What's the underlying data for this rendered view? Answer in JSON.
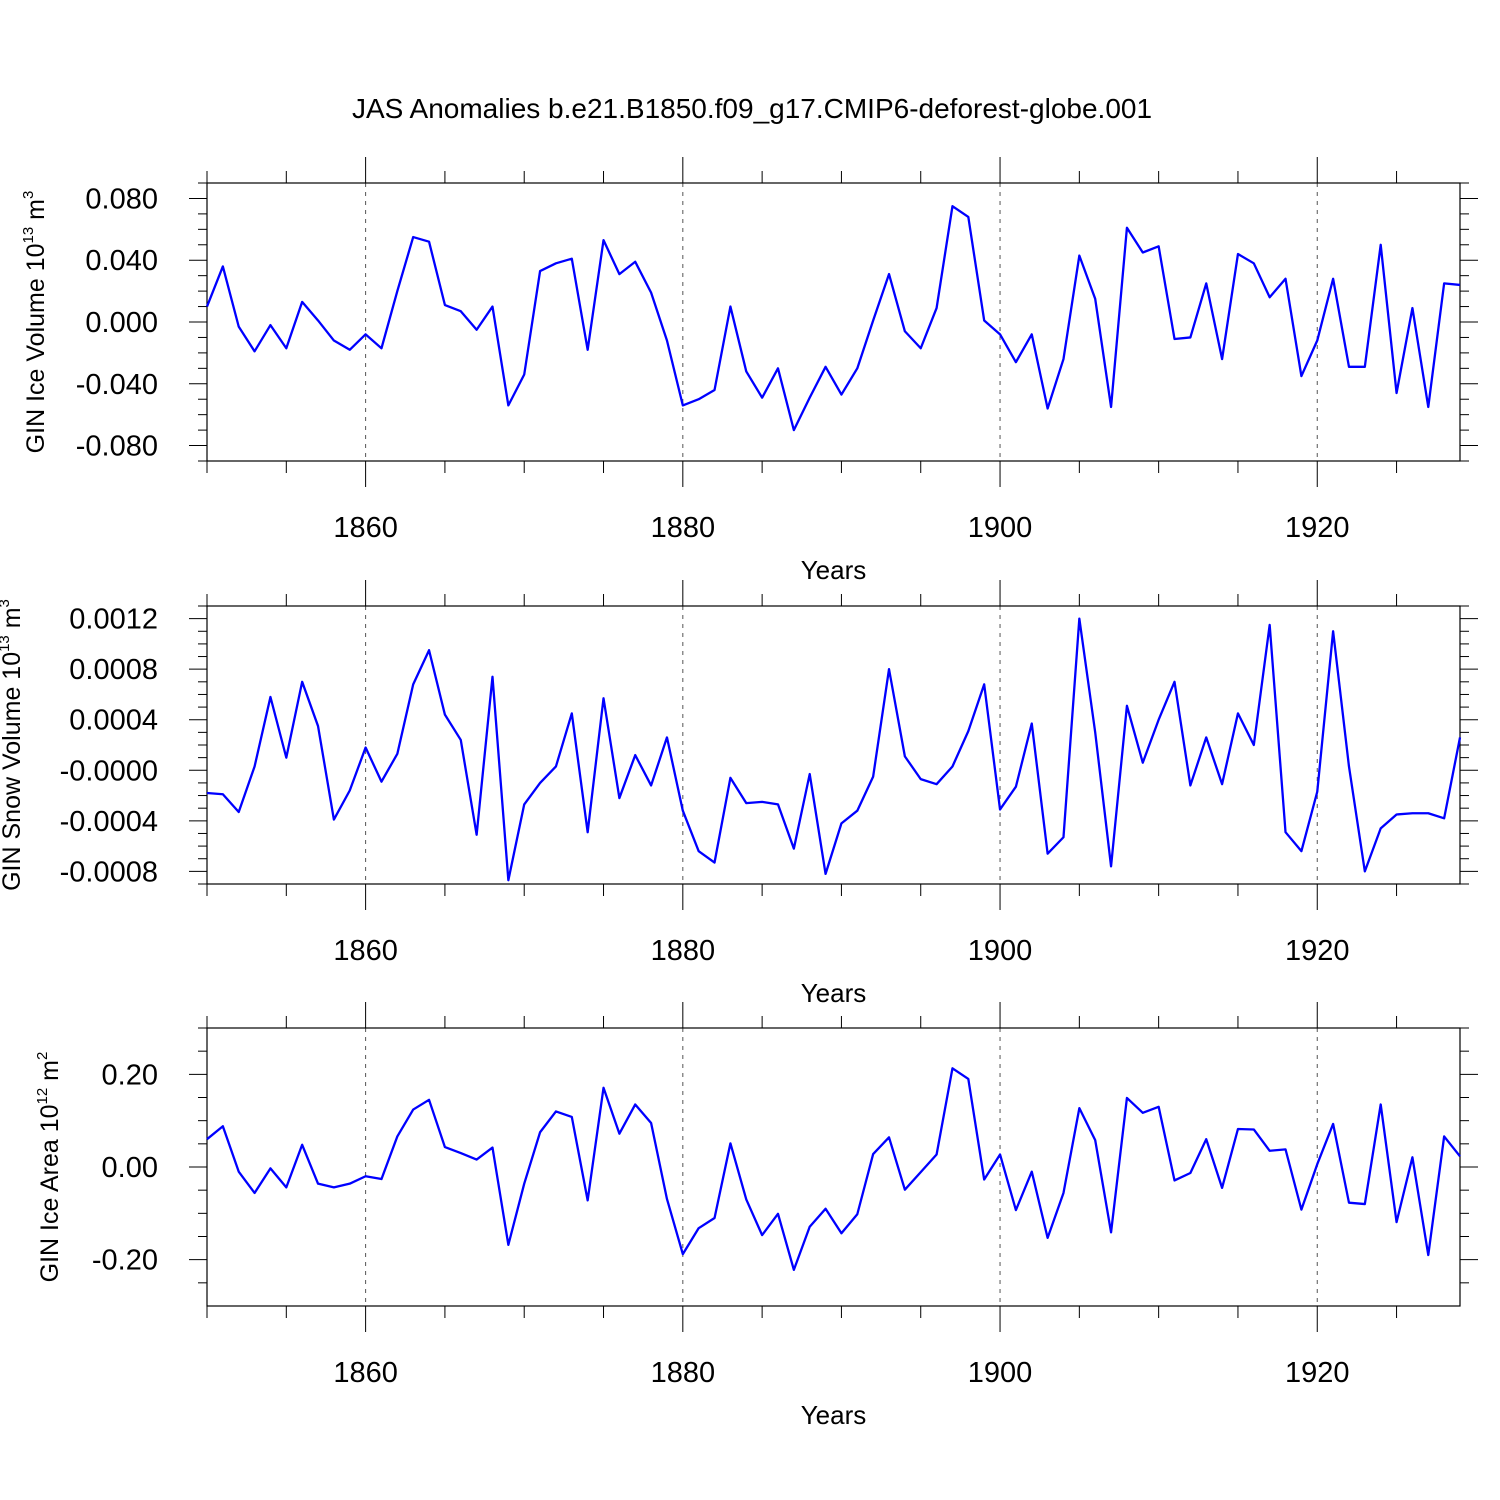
{
  "title": "JAS Anomalies b.e21.B1850.f09_g17.CMIP6-deforest-globe.001",
  "chart_data": [
    {
      "type": "line",
      "ylabel": "GIN Ice Volume 10",
      "ylabel_exp": "13",
      "ylabel_unit": "m",
      "ylabel_unit_exp": "3",
      "xlabel": "Years",
      "xlim": [
        1850,
        1929
      ],
      "ylim": [
        -0.09,
        0.09
      ],
      "yticks": [
        -0.08,
        -0.04,
        0.0,
        0.04,
        0.08
      ],
      "ytick_labels": [
        "-0.080",
        "-0.040",
        "0.000",
        "0.040",
        "0.080"
      ],
      "xticks": [
        1860,
        1880,
        1900,
        1920
      ],
      "xtick_labels": [
        "1860",
        "1880",
        "1900",
        "1920"
      ],
      "series": [
        {
          "name": "GIN Ice Volume",
          "color": "#0000ff",
          "x_start": 1850,
          "values": [
            0.01,
            0.036,
            -0.003,
            -0.019,
            -0.002,
            -0.017,
            0.013,
            0.001,
            -0.012,
            -0.018,
            -0.008,
            -0.017,
            0.02,
            0.055,
            0.052,
            0.011,
            0.007,
            -0.005,
            0.01,
            -0.054,
            -0.034,
            0.033,
            0.038,
            0.041,
            -0.018,
            0.053,
            0.031,
            0.039,
            0.019,
            -0.012,
            -0.054,
            -0.05,
            -0.044,
            0.01,
            -0.032,
            -0.049,
            -0.03,
            -0.07,
            -0.049,
            -0.029,
            -0.047,
            -0.03,
            0.001,
            0.031,
            -0.006,
            -0.017,
            0.009,
            0.075,
            0.068,
            0.001,
            -0.008,
            -0.026,
            -0.008,
            -0.056,
            -0.024,
            0.043,
            0.015,
            -0.055,
            0.061,
            0.045,
            0.049,
            -0.011,
            -0.01,
            0.025,
            -0.024,
            0.044,
            0.038,
            0.016,
            0.028,
            -0.035,
            -0.012,
            0.028,
            -0.029,
            -0.029,
            0.05,
            -0.046,
            0.009,
            -0.055,
            0.025,
            0.024
          ]
        }
      ]
    },
    {
      "type": "line",
      "ylabel": "GIN Snow Volume 10",
      "ylabel_exp": "13",
      "ylabel_unit": "m",
      "ylabel_unit_exp": "3",
      "xlabel": "Years",
      "xlim": [
        1850,
        1929
      ],
      "ylim": [
        -0.0009,
        0.0013
      ],
      "yticks": [
        -0.0008,
        -0.0004,
        0.0,
        0.0004,
        0.0008,
        0.0012
      ],
      "ytick_labels": [
        "-0.0008",
        "-0.0004",
        "-0.0000",
        "0.0004",
        "0.0008",
        "0.0012"
      ],
      "xticks": [
        1860,
        1880,
        1900,
        1920
      ],
      "xtick_labels": [
        "1860",
        "1880",
        "1900",
        "1920"
      ],
      "series": [
        {
          "name": "GIN Snow Volume",
          "color": "#0000ff",
          "x_start": 1850,
          "values": [
            -0.00018,
            -0.00019,
            -0.00033,
            3e-05,
            0.00058,
            0.0001,
            0.0007,
            0.00035,
            -0.00039,
            -0.00016,
            0.00018,
            -9e-05,
            0.00013,
            0.00068,
            0.00095,
            0.00044,
            0.00024,
            -0.00051,
            0.00074,
            -0.00087,
            -0.00027,
            -0.0001,
            3e-05,
            0.00045,
            -0.00049,
            0.00057,
            -0.00022,
            0.00012,
            -0.00012,
            0.00026,
            -0.00032,
            -0.00064,
            -0.00073,
            -6e-05,
            -0.00026,
            -0.00025,
            -0.00027,
            -0.00062,
            -3e-05,
            -0.00082,
            -0.00042,
            -0.00032,
            -5e-05,
            0.0008,
            0.00011,
            -7e-05,
            -0.00011,
            3e-05,
            0.00031,
            0.00068,
            -0.00031,
            -0.00013,
            0.00037,
            -0.00066,
            -0.00053,
            0.0012,
            0.0003,
            -0.00076,
            0.00051,
            6e-05,
            0.0004,
            0.0007,
            -0.00012,
            0.00026,
            -0.00011,
            0.00045,
            0.0002,
            0.00115,
            -0.00049,
            -0.00064,
            -0.00017,
            0.0011,
            3e-05,
            -0.0008,
            -0.00046,
            -0.00035,
            -0.00034,
            -0.00034,
            -0.00038,
            0.00026
          ]
        }
      ]
    },
    {
      "type": "line",
      "ylabel": "GIN Ice Area 10",
      "ylabel_exp": "12",
      "ylabel_unit": "m",
      "ylabel_unit_exp": "2",
      "xlabel": "Years",
      "xlim": [
        1850,
        1929
      ],
      "ylim": [
        -0.3,
        0.3
      ],
      "yticks": [
        -0.2,
        0.0,
        0.2
      ],
      "ytick_labels": [
        "-0.20",
        "0.00",
        "0.20"
      ],
      "xticks": [
        1860,
        1880,
        1900,
        1920
      ],
      "xtick_labels": [
        "1860",
        "1880",
        "1900",
        "1920"
      ],
      "series": [
        {
          "name": "GIN Ice Area",
          "color": "#0000ff",
          "x_start": 1850,
          "values": [
            0.06,
            0.088,
            -0.01,
            -0.056,
            -0.003,
            -0.044,
            0.048,
            -0.036,
            -0.044,
            -0.036,
            -0.02,
            -0.026,
            0.066,
            0.124,
            0.145,
            0.043,
            0.03,
            0.016,
            0.042,
            -0.168,
            -0.036,
            0.075,
            0.12,
            0.108,
            -0.072,
            0.171,
            0.072,
            0.135,
            0.095,
            -0.069,
            -0.188,
            -0.132,
            -0.11,
            0.051,
            -0.07,
            -0.147,
            -0.101,
            -0.222,
            -0.129,
            -0.09,
            -0.143,
            -0.102,
            0.028,
            0.064,
            -0.049,
            -0.011,
            0.027,
            0.213,
            0.19,
            -0.027,
            0.027,
            -0.093,
            -0.01,
            -0.153,
            -0.056,
            0.127,
            0.058,
            -0.141,
            0.149,
            0.117,
            0.13,
            -0.029,
            -0.013,
            0.06,
            -0.045,
            0.082,
            0.081,
            0.035,
            0.038,
            -0.092,
            0.006,
            0.093,
            -0.077,
            -0.08,
            0.135,
            -0.119,
            0.021,
            -0.19,
            0.066,
            0.023
          ]
        }
      ]
    }
  ]
}
